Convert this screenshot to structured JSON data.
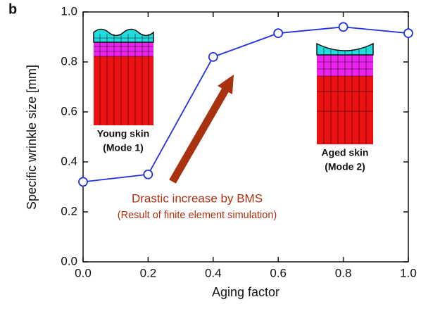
{
  "chart_data": {
    "type": "line",
    "panel_label": "b",
    "x_label": "Aging factor",
    "y_label": "Specific wrinkle size [mm]",
    "x": [
      0,
      0.2,
      0.4,
      0.6,
      0.8,
      1.0
    ],
    "series": [
      {
        "color": "#2233dd",
        "values": [
          0.32,
          0.35,
          0.82,
          0.915,
          0.94,
          0.915
        ]
      }
    ],
    "xlim": [
      0,
      1.0
    ],
    "ylim": [
      0,
      1.0
    ],
    "xticks": [
      {
        "value": 0,
        "label": "0.0"
      },
      0.2,
      0.4,
      0.6,
      0.8,
      {
        "value": 1,
        "label": "1.0"
      }
    ],
    "yticks": [
      {
        "value": 0,
        "label": "0.0"
      },
      0.2,
      0.4,
      0.6,
      0.8,
      {
        "value": 1,
        "label": "1.0"
      }
    ],
    "insets": [
      {
        "line1": "Young skin",
        "line2": "(Mode 1)"
      },
      {
        "line1": "Aged skin",
        "line2": "(Mode 2)"
      }
    ],
    "annotations": [
      "Drastic increase by BMS",
      "(Result of finite element simulation)"
    ]
  }
}
